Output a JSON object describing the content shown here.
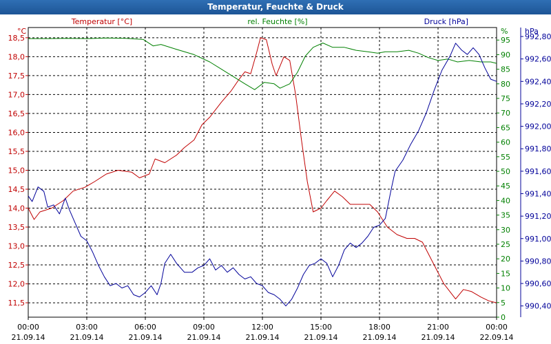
{
  "chart_data": {
    "type": "line",
    "title": "Temperatur, Feuchte & Druck",
    "grid": true,
    "x_ticks": [
      {
        "time": "00:00",
        "date": "21.09.14"
      },
      {
        "time": "03:00",
        "date": "21.09.14"
      },
      {
        "time": "06:00",
        "date": "21.09.14"
      },
      {
        "time": "09:00",
        "date": "21.09.14"
      },
      {
        "time": "12:00",
        "date": "21.09.14"
      },
      {
        "time": "15:00",
        "date": "21.09.14"
      },
      {
        "time": "18:00",
        "date": "21.09.14"
      },
      {
        "time": "21:00",
        "date": "21.09.14"
      },
      {
        "time": "00:00",
        "date": "22.09.14"
      }
    ],
    "xlim": [
      0,
      24
    ],
    "axes": {
      "temperature": {
        "label": "Temperatur [°C]",
        "unit": "°C",
        "color": "#c00000",
        "ylim": [
          11.12,
          18.77
        ],
        "ticks": [
          "11,5",
          "12,0",
          "12,5",
          "13,0",
          "13,5",
          "14,0",
          "14,5",
          "15,0",
          "15,5",
          "16,0",
          "16,5",
          "17,0",
          "17,5",
          "18,0",
          "18,5"
        ],
        "tick_values": [
          11.5,
          12,
          12.5,
          13,
          13.5,
          14,
          14.5,
          15,
          15.5,
          16,
          16.5,
          17,
          17.5,
          18,
          18.5
        ]
      },
      "humidity": {
        "label": "rel. Feuchte [%]",
        "unit": "%",
        "color": "#008000",
        "ylim": [
          0,
          99.3
        ],
        "ticks": [
          "0",
          "5",
          "10",
          "15",
          "20",
          "25",
          "30",
          "35",
          "40",
          "45",
          "50",
          "55",
          "60",
          "65",
          "70",
          "75",
          "80",
          "85",
          "90",
          "95"
        ],
        "tick_values": [
          0,
          5,
          10,
          15,
          20,
          25,
          30,
          35,
          40,
          45,
          50,
          55,
          60,
          65,
          70,
          75,
          80,
          85,
          90,
          95
        ]
      },
      "pressure": {
        "label": "Druck [hPa]",
        "unit": "hPa",
        "color": "#000099",
        "ylim": [
          990.3,
          992.88
        ],
        "ticks": [
          "990,40",
          "990,60",
          "990,80",
          "991,00",
          "991,20",
          "991,40",
          "991,60",
          "991,80",
          "992,00",
          "992,20",
          "992,40",
          "992,60",
          "992,80"
        ],
        "tick_values": [
          990.4,
          990.6,
          990.8,
          991.0,
          991.2,
          991.4,
          991.6,
          991.8,
          992.0,
          992.2,
          992.4,
          992.6,
          992.8
        ]
      }
    },
    "series": [
      {
        "name": "Temperatur [°C]",
        "axis": "temperature",
        "color": "#c00000",
        "points": [
          [
            0,
            14.0
          ],
          [
            0.3,
            13.7
          ],
          [
            0.6,
            13.9
          ],
          [
            1.2,
            14.0
          ],
          [
            1.8,
            14.2
          ],
          [
            2.3,
            14.45
          ],
          [
            2.9,
            14.55
          ],
          [
            3.4,
            14.7
          ],
          [
            4.0,
            14.9
          ],
          [
            4.6,
            15.0
          ],
          [
            5.3,
            14.95
          ],
          [
            5.7,
            14.8
          ],
          [
            6.2,
            14.9
          ],
          [
            6.5,
            15.3
          ],
          [
            7.0,
            15.2
          ],
          [
            7.6,
            15.4
          ],
          [
            8.0,
            15.6
          ],
          [
            8.5,
            15.8
          ],
          [
            8.9,
            16.2
          ],
          [
            9.3,
            16.4
          ],
          [
            9.9,
            16.8
          ],
          [
            10.4,
            17.1
          ],
          [
            10.8,
            17.4
          ],
          [
            11.1,
            17.6
          ],
          [
            11.4,
            17.55
          ],
          [
            11.7,
            18.1
          ],
          [
            11.9,
            18.5
          ],
          [
            12.2,
            18.45
          ],
          [
            12.5,
            17.8
          ],
          [
            12.7,
            17.5
          ],
          [
            13.1,
            18.0
          ],
          [
            13.4,
            17.9
          ],
          [
            13.7,
            17.0
          ],
          [
            14.0,
            15.8
          ],
          [
            14.3,
            14.7
          ],
          [
            14.6,
            13.9
          ],
          [
            15.0,
            14.0
          ],
          [
            15.3,
            14.2
          ],
          [
            15.7,
            14.45
          ],
          [
            16.1,
            14.3
          ],
          [
            16.5,
            14.1
          ],
          [
            17.0,
            14.1
          ],
          [
            17.5,
            14.1
          ],
          [
            17.9,
            13.9
          ],
          [
            18.4,
            13.5
          ],
          [
            18.9,
            13.3
          ],
          [
            19.4,
            13.2
          ],
          [
            19.8,
            13.2
          ],
          [
            20.2,
            13.1
          ],
          [
            20.7,
            12.6
          ],
          [
            21.3,
            12.0
          ],
          [
            21.9,
            11.6
          ],
          [
            22.3,
            11.85
          ],
          [
            22.7,
            11.8
          ],
          [
            23.2,
            11.65
          ],
          [
            23.6,
            11.55
          ],
          [
            24.0,
            11.5
          ]
        ]
      },
      {
        "name": "rel. Feuchte [%]",
        "axis": "humidity",
        "color": "#008000",
        "points": [
          [
            0,
            95.5
          ],
          [
            1.0,
            95.5
          ],
          [
            2.0,
            95.6
          ],
          [
            3.0,
            95.5
          ],
          [
            4.0,
            95.7
          ],
          [
            5.0,
            95.6
          ],
          [
            5.9,
            95.2
          ],
          [
            6.4,
            93.0
          ],
          [
            6.8,
            93.5
          ],
          [
            7.5,
            92.0
          ],
          [
            8.5,
            90.0
          ],
          [
            9.3,
            87.5
          ],
          [
            9.9,
            85.0
          ],
          [
            10.5,
            82.5
          ],
          [
            11.1,
            80.0
          ],
          [
            11.6,
            78.0
          ],
          [
            12.1,
            80.5
          ],
          [
            12.6,
            80.0
          ],
          [
            12.9,
            78.5
          ],
          [
            13.4,
            80.0
          ],
          [
            13.8,
            84.0
          ],
          [
            14.2,
            89.5
          ],
          [
            14.6,
            92.5
          ],
          [
            15.1,
            94.0
          ],
          [
            15.6,
            92.5
          ],
          [
            16.2,
            92.5
          ],
          [
            16.8,
            91.5
          ],
          [
            17.4,
            91.0
          ],
          [
            17.9,
            90.5
          ],
          [
            18.3,
            91.0
          ],
          [
            18.9,
            91.0
          ],
          [
            19.5,
            91.5
          ],
          [
            20.0,
            90.5
          ],
          [
            20.5,
            89.0
          ],
          [
            21.0,
            88.0
          ],
          [
            21.5,
            88.5
          ],
          [
            22.0,
            87.5
          ],
          [
            22.6,
            88.0
          ],
          [
            23.2,
            87.5
          ],
          [
            23.7,
            87.5
          ],
          [
            24.0,
            87.0
          ]
        ]
      },
      {
        "name": "Druck [hPa]",
        "axis": "pressure",
        "color": "#000099",
        "points": [
          [
            0,
            991.38
          ],
          [
            0.2,
            991.33
          ],
          [
            0.5,
            991.46
          ],
          [
            0.8,
            991.42
          ],
          [
            1.0,
            991.28
          ],
          [
            1.3,
            991.3
          ],
          [
            1.6,
            991.22
          ],
          [
            1.9,
            991.36
          ],
          [
            2.1,
            991.26
          ],
          [
            2.4,
            991.14
          ],
          [
            2.7,
            991.02
          ],
          [
            3.0,
            990.98
          ],
          [
            3.3,
            990.88
          ],
          [
            3.6,
            990.76
          ],
          [
            3.9,
            990.66
          ],
          [
            4.2,
            990.58
          ],
          [
            4.5,
            990.6
          ],
          [
            4.8,
            990.56
          ],
          [
            5.1,
            990.58
          ],
          [
            5.4,
            990.5
          ],
          [
            5.7,
            990.48
          ],
          [
            6.0,
            990.52
          ],
          [
            6.3,
            990.58
          ],
          [
            6.6,
            990.5
          ],
          [
            6.8,
            990.6
          ],
          [
            7.0,
            990.78
          ],
          [
            7.3,
            990.86
          ],
          [
            7.6,
            990.78
          ],
          [
            8.0,
            990.7
          ],
          [
            8.4,
            990.7
          ],
          [
            8.7,
            990.74
          ],
          [
            9.0,
            990.76
          ],
          [
            9.3,
            990.82
          ],
          [
            9.6,
            990.72
          ],
          [
            9.9,
            990.76
          ],
          [
            10.2,
            990.7
          ],
          [
            10.5,
            990.74
          ],
          [
            10.8,
            990.68
          ],
          [
            11.1,
            990.64
          ],
          [
            11.4,
            990.66
          ],
          [
            11.7,
            990.6
          ],
          [
            12.0,
            990.58
          ],
          [
            12.3,
            990.52
          ],
          [
            12.6,
            990.5
          ],
          [
            12.9,
            990.46
          ],
          [
            13.2,
            990.4
          ],
          [
            13.5,
            990.46
          ],
          [
            13.8,
            990.56
          ],
          [
            14.1,
            990.68
          ],
          [
            14.4,
            990.76
          ],
          [
            14.7,
            990.78
          ],
          [
            15.0,
            990.82
          ],
          [
            15.3,
            990.78
          ],
          [
            15.6,
            990.66
          ],
          [
            15.9,
            990.76
          ],
          [
            16.2,
            990.9
          ],
          [
            16.5,
            990.96
          ],
          [
            16.8,
            990.92
          ],
          [
            17.1,
            990.96
          ],
          [
            17.4,
            991.02
          ],
          [
            17.7,
            991.1
          ],
          [
            18.0,
            991.12
          ],
          [
            18.3,
            991.18
          ],
          [
            18.6,
            991.44
          ],
          [
            18.8,
            991.6
          ],
          [
            19.2,
            991.7
          ],
          [
            19.6,
            991.84
          ],
          [
            20.0,
            991.96
          ],
          [
            20.4,
            992.12
          ],
          [
            20.8,
            992.32
          ],
          [
            21.2,
            992.5
          ],
          [
            21.6,
            992.62
          ],
          [
            21.9,
            992.74
          ],
          [
            22.2,
            992.68
          ],
          [
            22.5,
            992.64
          ],
          [
            22.8,
            992.7
          ],
          [
            23.1,
            992.64
          ],
          [
            23.4,
            992.52
          ],
          [
            23.7,
            992.42
          ],
          [
            24.0,
            992.4
          ]
        ]
      }
    ]
  }
}
